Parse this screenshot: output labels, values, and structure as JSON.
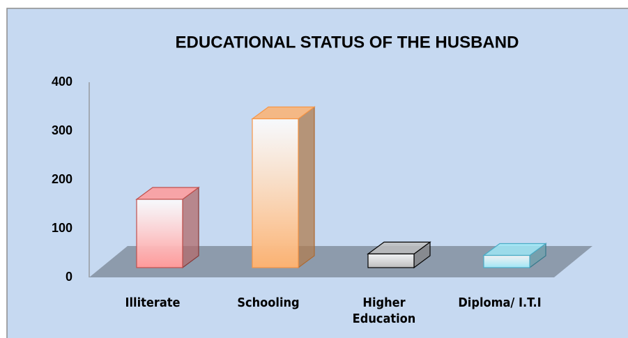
{
  "chart_data": {
    "type": "bar3d",
    "title": "EDUCATIONAL STATUS OF THE HUSBAND",
    "categories": [
      "Illiterate",
      "Schooling",
      "Higher Education",
      "Diploma/ I.T.I"
    ],
    "values": [
      140,
      305,
      28,
      25
    ],
    "colors": [
      "#ff9a9a",
      "#fbb272",
      "#bdbdbd",
      "#9fe6f5"
    ],
    "edge_colors": [
      "#c0504d",
      "#f79646",
      "#000000",
      "#4bacc6"
    ],
    "ylim": [
      0,
      400
    ],
    "yticks": [
      0,
      100,
      200,
      300,
      400
    ],
    "grid": false
  }
}
